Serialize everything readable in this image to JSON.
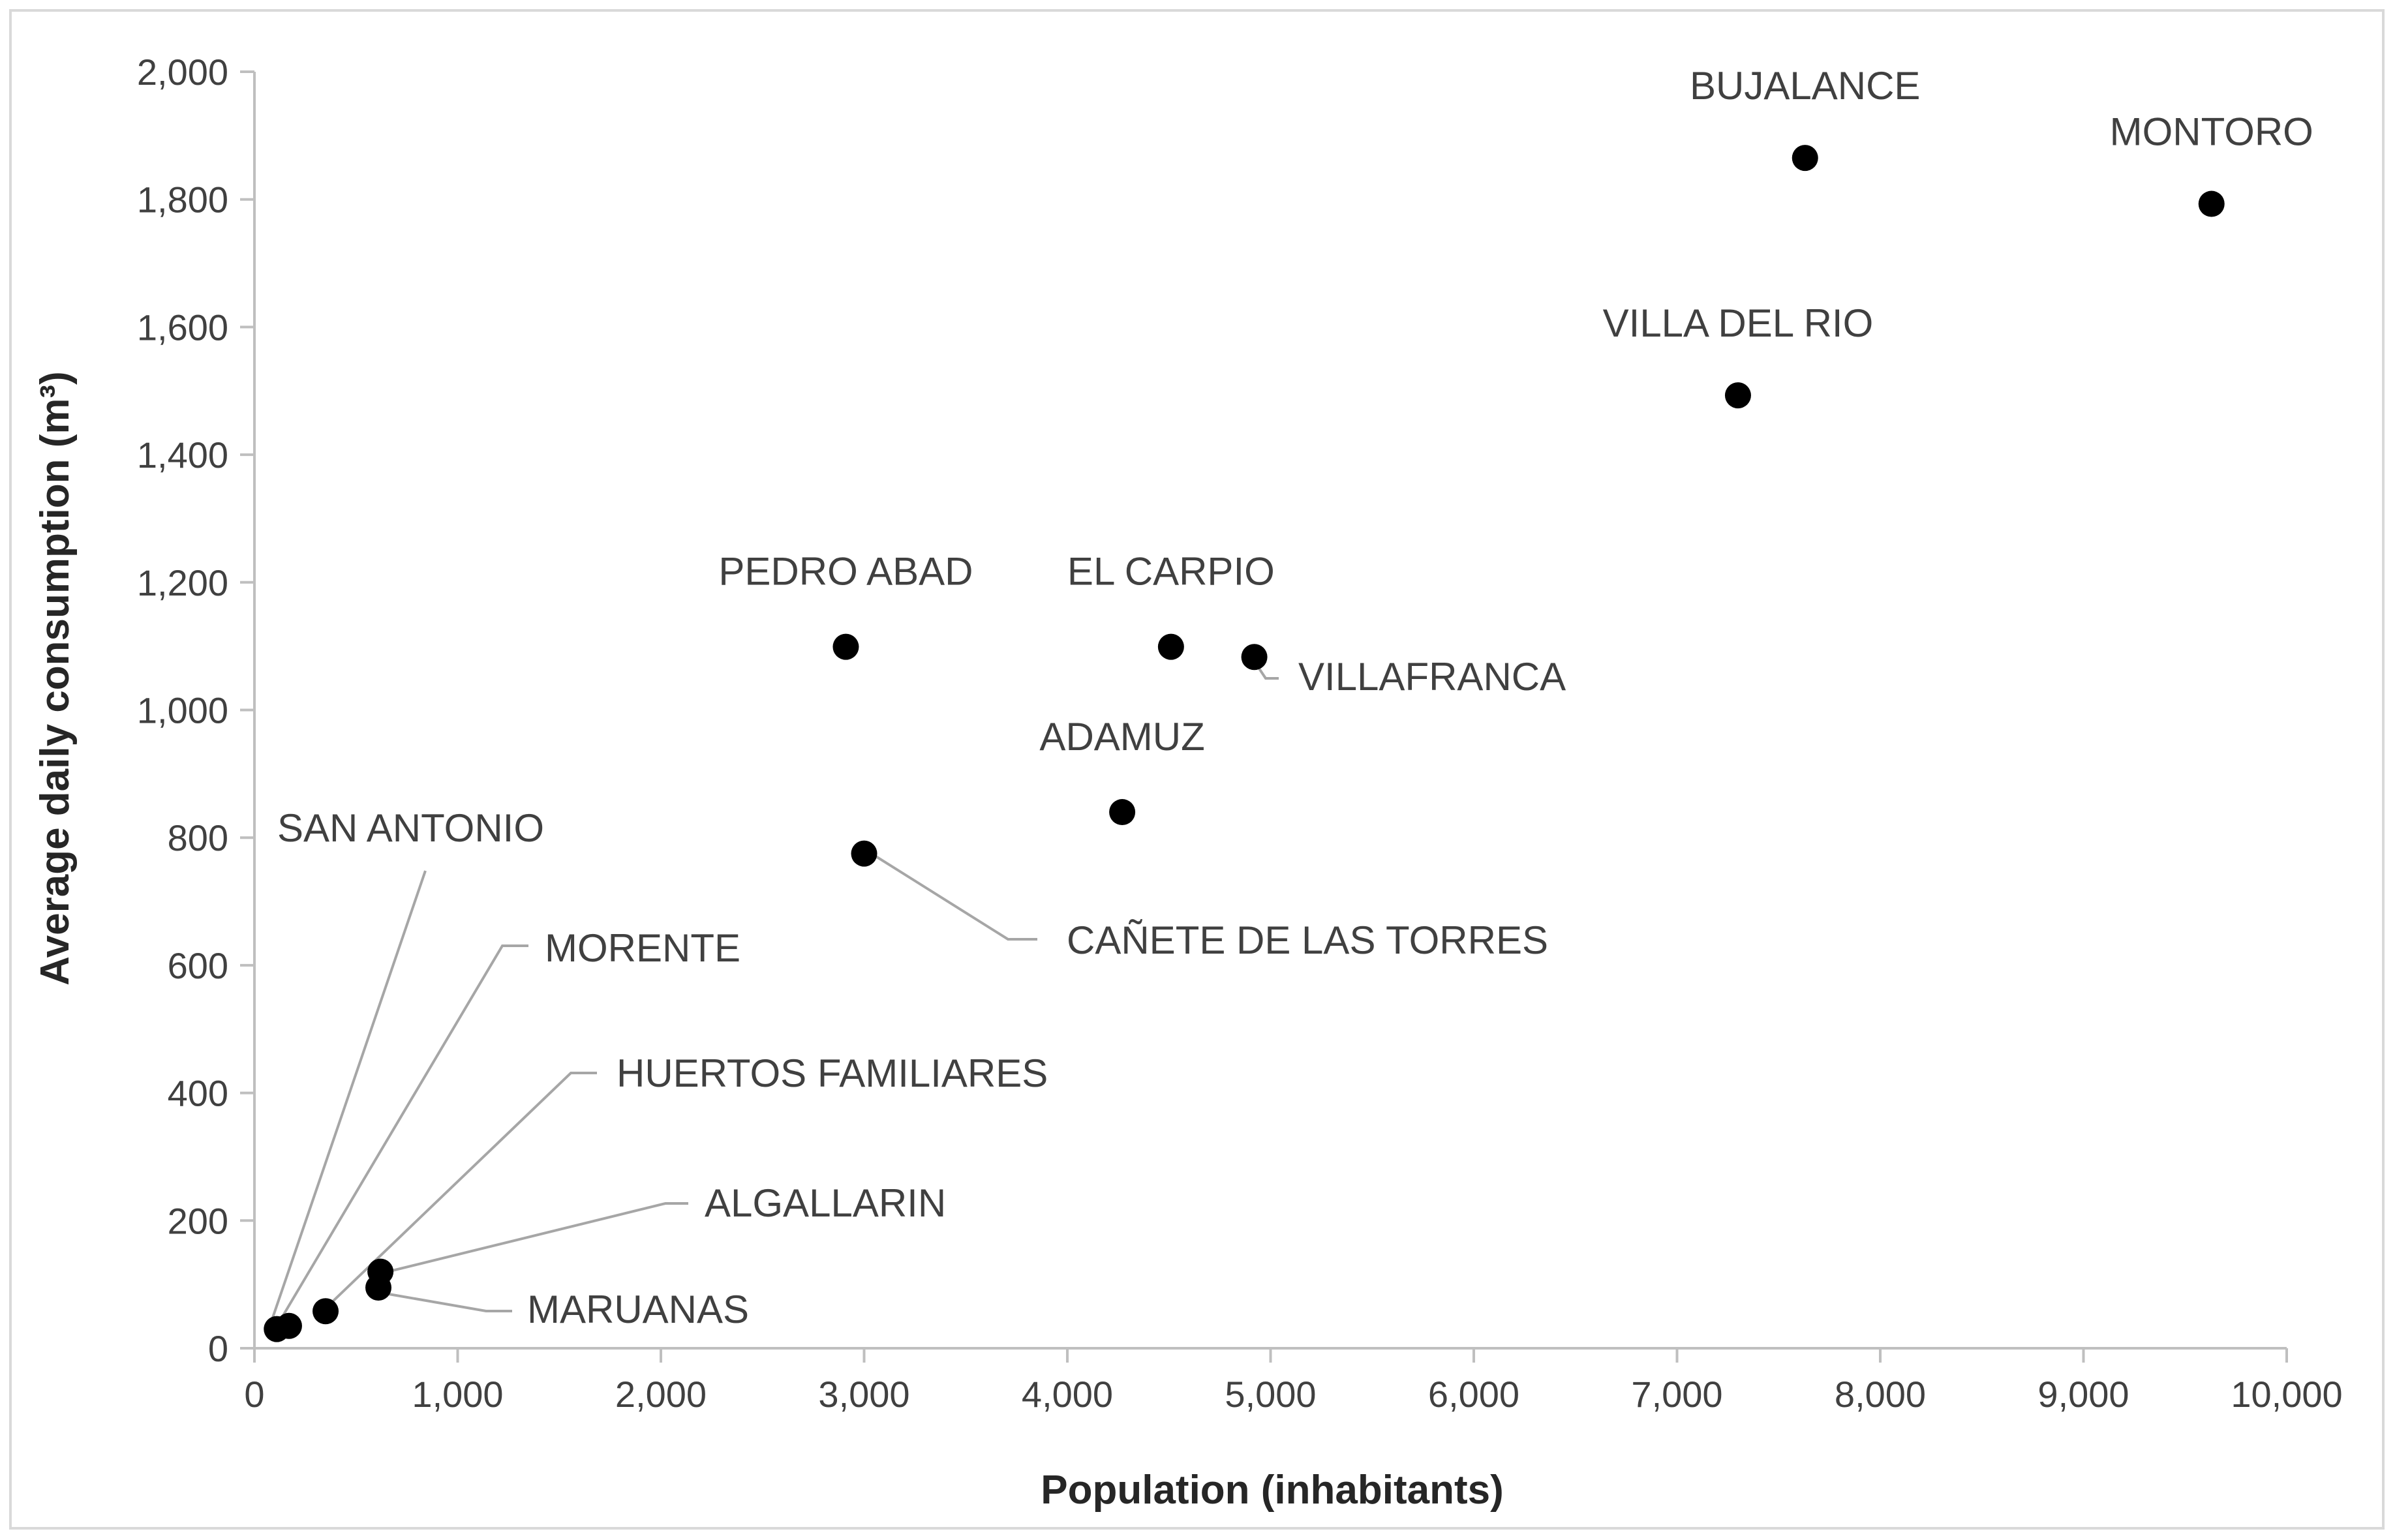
{
  "chart_data": {
    "type": "scatter",
    "xlabel": "Population (inhabitants)",
    "ylabel": "Average daily consumption (m³)",
    "xlim": [
      0,
      10000
    ],
    "ylim": [
      0,
      2000
    ],
    "x_ticks": [
      0,
      1000,
      2000,
      3000,
      4000,
      5000,
      6000,
      7000,
      8000,
      9000,
      10000
    ],
    "x_tick_labels": [
      "0",
      "1,000",
      "2,000",
      "3,000",
      "4,000",
      "5,000",
      "6,000",
      "7,000",
      "8,000",
      "9,000",
      "10,000"
    ],
    "y_ticks": [
      0,
      200,
      400,
      600,
      800,
      1000,
      1200,
      1400,
      1600,
      1800,
      2000
    ],
    "y_tick_labels": [
      "0",
      "200",
      "400",
      "600",
      "800",
      "1,000",
      "1,200",
      "1,400",
      "1,600",
      "1,800",
      "2,000"
    ],
    "grid": false,
    "marker_color": "#000000",
    "leader_color": "#a6a6a6",
    "points": [
      {
        "label": "BUJALANCE",
        "x": 7630,
        "y": 1865
      },
      {
        "label": "MONTORO",
        "x": 9630,
        "y": 1793
      },
      {
        "label": "VILLA DEL RIO",
        "x": 7300,
        "y": 1493
      },
      {
        "label": "PEDRO ABAD",
        "x": 2910,
        "y": 1099
      },
      {
        "label": "EL CARPIO",
        "x": 4510,
        "y": 1099
      },
      {
        "label": "VILLAFRANCA",
        "x": 4920,
        "y": 1083
      },
      {
        "label": "ADAMUZ",
        "x": 4270,
        "y": 840
      },
      {
        "label": "CAÑETE DE LAS TORRES",
        "x": 3000,
        "y": 775
      },
      {
        "label": "SAN ANTONIO",
        "x": 110,
        "y": 30
      },
      {
        "label": "MORENTE",
        "x": 170,
        "y": 35
      },
      {
        "label": "HUERTOS FAMILIARES",
        "x": 350,
        "y": 58
      },
      {
        "label": "ALGALLARIN",
        "x": 620,
        "y": 120
      },
      {
        "label": "MARUANAS",
        "x": 610,
        "y": 95
      }
    ]
  }
}
